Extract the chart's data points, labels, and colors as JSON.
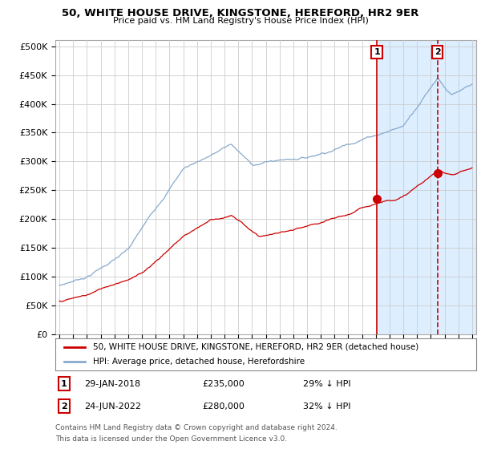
{
  "title": "50, WHITE HOUSE DRIVE, KINGSTONE, HEREFORD, HR2 9ER",
  "subtitle": "Price paid vs. HM Land Registry's House Price Index (HPI)",
  "ylabel_ticks": [
    "£0",
    "£50K",
    "£100K",
    "£150K",
    "£200K",
    "£250K",
    "£300K",
    "£350K",
    "£400K",
    "£450K",
    "£500K"
  ],
  "ytick_values": [
    0,
    50000,
    100000,
    150000,
    200000,
    250000,
    300000,
    350000,
    400000,
    450000,
    500000
  ],
  "ylim": [
    0,
    510000
  ],
  "xlim_start": 1994.7,
  "xlim_end": 2025.3,
  "sale1_x": 2018.08,
  "sale1_y": 235000,
  "sale1_date": "29-JAN-2018",
  "sale1_pct": "29% ↓ HPI",
  "sale2_x": 2022.48,
  "sale2_y": 280000,
  "sale2_date": "24-JUN-2022",
  "sale2_pct": "32% ↓ HPI",
  "legend_property": "50, WHITE HOUSE DRIVE, KINGSTONE, HEREFORD, HR2 9ER (detached house)",
  "legend_hpi": "HPI: Average price, detached house, Herefordshire",
  "footnote_line1": "Contains HM Land Registry data © Crown copyright and database right 2024.",
  "footnote_line2": "This data is licensed under the Open Government Licence v3.0.",
  "property_line_color": "#cc0000",
  "hpi_line_color": "#88aacc",
  "shade_color": "#ddeeff",
  "background_color": "#ffffff",
  "grid_color": "#cccccc",
  "sale_marker_color": "#cc0000"
}
